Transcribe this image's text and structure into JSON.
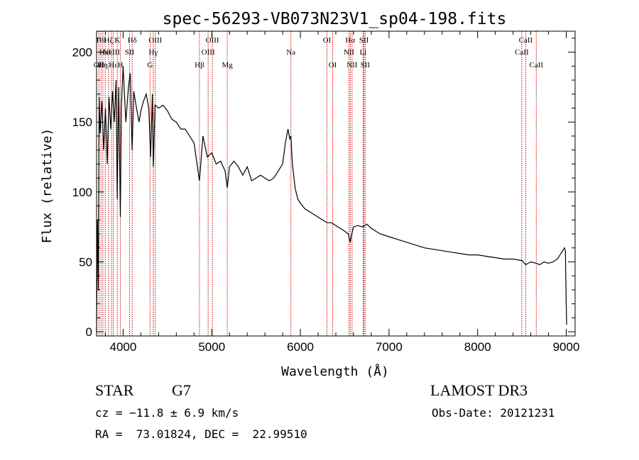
{
  "chart_data": {
    "type": "line",
    "title": "spec-56293-VB073N23V1_sp04-198.fits",
    "xlabel": "Wavelength (Å)",
    "ylabel": "Flux (relative)",
    "xlim": [
      3700,
      9100
    ],
    "ylim": [
      -3,
      215
    ],
    "xticks": [
      4000,
      5000,
      6000,
      7000,
      8000,
      9000
    ],
    "xtick_labels": [
      "4000",
      "5000",
      "6000",
      "7000",
      "8000",
      "9000"
    ],
    "yticks": [
      0,
      50,
      100,
      150,
      200
    ],
    "ytick_labels": [
      "0",
      "50",
      "100",
      "150",
      "200"
    ],
    "series": [
      {
        "name": "flux",
        "x": [
          3700,
          3710,
          3720,
          3730,
          3740,
          3760,
          3780,
          3800,
          3820,
          3840,
          3860,
          3880,
          3900,
          3920,
          3933,
          3950,
          3968,
          3980,
          4000,
          4030,
          4060,
          4080,
          4101,
          4120,
          4150,
          4180,
          4200,
          4230,
          4260,
          4290,
          4310,
          4330,
          4340,
          4360,
          4400,
          4450,
          4500,
          4550,
          4600,
          4650,
          4700,
          4750,
          4800,
          4861,
          4900,
          4950,
          5000,
          5050,
          5100,
          5150,
          5175,
          5200,
          5250,
          5300,
          5350,
          5400,
          5450,
          5500,
          5550,
          5600,
          5650,
          5700,
          5750,
          5800,
          5830,
          5860,
          5880,
          5893,
          5910,
          5940,
          5970,
          6000,
          6050,
          6100,
          6150,
          6200,
          6250,
          6300,
          6350,
          6400,
          6450,
          6500,
          6540,
          6563,
          6580,
          6600,
          6650,
          6700,
          6750,
          6800,
          6850,
          6900,
          7000,
          7100,
          7200,
          7300,
          7400,
          7500,
          7600,
          7700,
          7800,
          7900,
          8000,
          8100,
          8200,
          8300,
          8400,
          8500,
          8542,
          8600,
          8662,
          8700,
          8750,
          8800,
          8850,
          8900,
          8930,
          8960,
          8980,
          8990,
          9000,
          9005
        ],
        "y": [
          0,
          80,
          30,
          168,
          142,
          165,
          130,
          160,
          120,
          168,
          145,
          172,
          150,
          180,
          95,
          175,
          82,
          160,
          190,
          150,
          175,
          185,
          130,
          172,
          160,
          150,
          158,
          165,
          170,
          160,
          125,
          170,
          118,
          162,
          160,
          162,
          158,
          152,
          150,
          145,
          145,
          140,
          135,
          108,
          140,
          125,
          128,
          120,
          122,
          115,
          103,
          118,
          122,
          118,
          112,
          118,
          108,
          110,
          112,
          110,
          108,
          110,
          115,
          120,
          135,
          145,
          138,
          140,
          120,
          103,
          95,
          92,
          88,
          86,
          84,
          82,
          80,
          78,
          78,
          76,
          74,
          72,
          70,
          64,
          70,
          75,
          76,
          75,
          77,
          74,
          72,
          70,
          68,
          66,
          64,
          62,
          60,
          59,
          58,
          57,
          56,
          55,
          55,
          54,
          53,
          52,
          52,
          51,
          48,
          50,
          49,
          48,
          50,
          49,
          50,
          52,
          55,
          58,
          60,
          58,
          20,
          5
        ]
      }
    ],
    "lines": [
      {
        "x": 3727,
        "label": "OII",
        "row": 2
      },
      {
        "x": 3750,
        "label": "Hθ",
        "row": 0
      },
      {
        "x": 3771,
        "label": "Hη",
        "row": 2
      },
      {
        "x": 3798,
        "label": "HeI",
        "row": 1
      },
      {
        "x": 3835,
        "label": "Hζ",
        "row": 0
      },
      {
        "x": 3869,
        "label": "NeIII",
        "row": 1
      },
      {
        "x": 3889,
        "label": "Hε",
        "row": 2
      },
      {
        "x": 3934,
        "label": "K",
        "row": 0
      },
      {
        "x": 3969,
        "label": "H",
        "row": 2
      },
      {
        "x": 4072,
        "label": "SII",
        "row": 1
      },
      {
        "x": 4102,
        "label": "Hδ",
        "row": 0
      },
      {
        "x": 4304,
        "label": "G",
        "row": 2
      },
      {
        "x": 4340,
        "label": "Hγ",
        "row": 1
      },
      {
        "x": 4363,
        "label": "OIII",
        "row": 0
      },
      {
        "x": 4861,
        "label": "Hβ",
        "row": 2
      },
      {
        "x": 4959,
        "label": "OIII",
        "row": 1
      },
      {
        "x": 5007,
        "label": "OIII",
        "row": 0
      },
      {
        "x": 5175,
        "label": "Mg",
        "row": 2
      },
      {
        "x": 5893,
        "label": "Na",
        "row": 1
      },
      {
        "x": 6300,
        "label": "OI",
        "row": 0
      },
      {
        "x": 6364,
        "label": "OI",
        "row": 2
      },
      {
        "x": 6548,
        "label": "NII",
        "row": 1
      },
      {
        "x": 6563,
        "label": "Hα",
        "row": 0
      },
      {
        "x": 6583,
        "label": "NII",
        "row": 2
      },
      {
        "x": 6708,
        "label": "Li",
        "row": 1
      },
      {
        "x": 6717,
        "label": "SII",
        "row": 0
      },
      {
        "x": 6731,
        "label": "SII",
        "row": 2
      },
      {
        "x": 8498,
        "label": "CaII",
        "row": 1
      },
      {
        "x": 8542,
        "label": "CaII",
        "row": 0
      },
      {
        "x": 8662,
        "label": "CaII",
        "row": 2
      }
    ],
    "line_color": "#cc0000"
  },
  "info": {
    "object_class": "STAR",
    "subclass": "G7",
    "survey": "LAMOST DR3",
    "cz": "cz = −11.8 ± 6.9 km/s",
    "obs_date": "Obs-Date: 20121231",
    "radec": "RA =  73.01824, DEC =  22.99510"
  }
}
